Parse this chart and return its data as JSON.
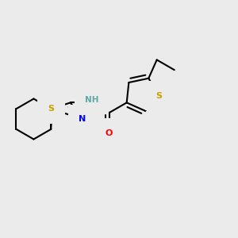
{
  "background_color": "#ebebeb",
  "bond_color": "#000000",
  "atom_colors": {
    "S": "#c8a000",
    "N": "#0000ff",
    "O": "#ff0000",
    "H": "#5fa8a8",
    "C": "#000000"
  },
  "bond_width": 1.5,
  "figsize": [
    3.0,
    3.0
  ],
  "dpi": 100,
  "xlim": [
    0.0,
    1.0
  ],
  "ylim": [
    0.1,
    0.9
  ]
}
